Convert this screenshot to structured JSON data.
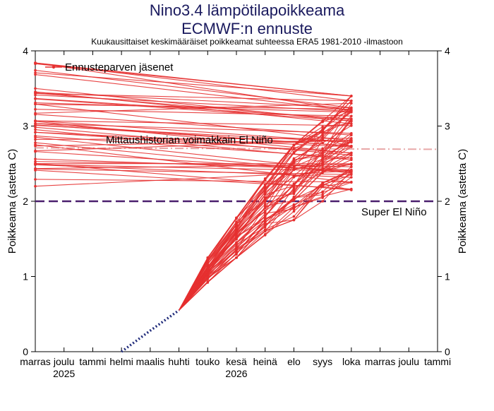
{
  "header": {
    "title_line1": "Nino3.4 lämpötilapoikkeama",
    "title_line2": "ECMWF:n ennuste",
    "subtitle": "Kuukausittaiset keskimääräiset poikkeamat suhteessa ERA5 1981-2010 -ilmastoon"
  },
  "chart_data": {
    "type": "line",
    "title": "Nino3.4 lämpötilapoikkeama ECMWF:n ennuste",
    "subtitle": "Kuukausittaiset keskimääräiset poikkeamat suhteessa ERA5 1981-2010 -ilmastoon",
    "ylabel_left": "Poikkeama (astetta C)",
    "ylabel_right": "Poikkeama (astetta C)",
    "ylim": [
      0,
      4
    ],
    "yticks": [
      0,
      1,
      2,
      3,
      4
    ],
    "xlabels": [
      "marras",
      "joulu",
      "tammi",
      "helmi",
      "maalis",
      "huhti",
      "touko",
      "kesä",
      "heinä",
      "elo",
      "syys",
      "loka",
      "marras",
      "joulu",
      "tammi"
    ],
    "year_labels": [
      {
        "label": "2025",
        "month": "joulu"
      },
      {
        "label": "2026",
        "month": "kesä"
      }
    ],
    "legend": {
      "label": "Ennusteparven jäsenet",
      "position": "top-left"
    },
    "reference_lines": [
      {
        "label": "Mittaushistorian voimakkain El Niño",
        "y": 2.71,
        "style": "dash-dot",
        "color": "#e8a8a8"
      },
      {
        "label": "Super El Niño",
        "y": 2.0,
        "style": "dashed",
        "color": "#4a1f6e"
      }
    ],
    "observed": {
      "style": "dotted",
      "color": "#1f2a7a",
      "x": [
        "helmi",
        "maalis",
        "huhti"
      ],
      "y": [
        0.0,
        0.28,
        0.55
      ]
    },
    "ensemble": {
      "color": "#e53030",
      "start": {
        "month": "huhti",
        "value": 0.55
      },
      "months": [
        "touko",
        "kesä",
        "heinä",
        "elo",
        "syys",
        "loka",
        "marras"
      ],
      "member_min": [
        0.92,
        1.25,
        1.55,
        1.75,
        2.0,
        2.15,
        2.2
      ],
      "member_max": [
        1.25,
        1.78,
        2.3,
        2.75,
        3.07,
        3.4,
        3.84
      ]
    }
  }
}
